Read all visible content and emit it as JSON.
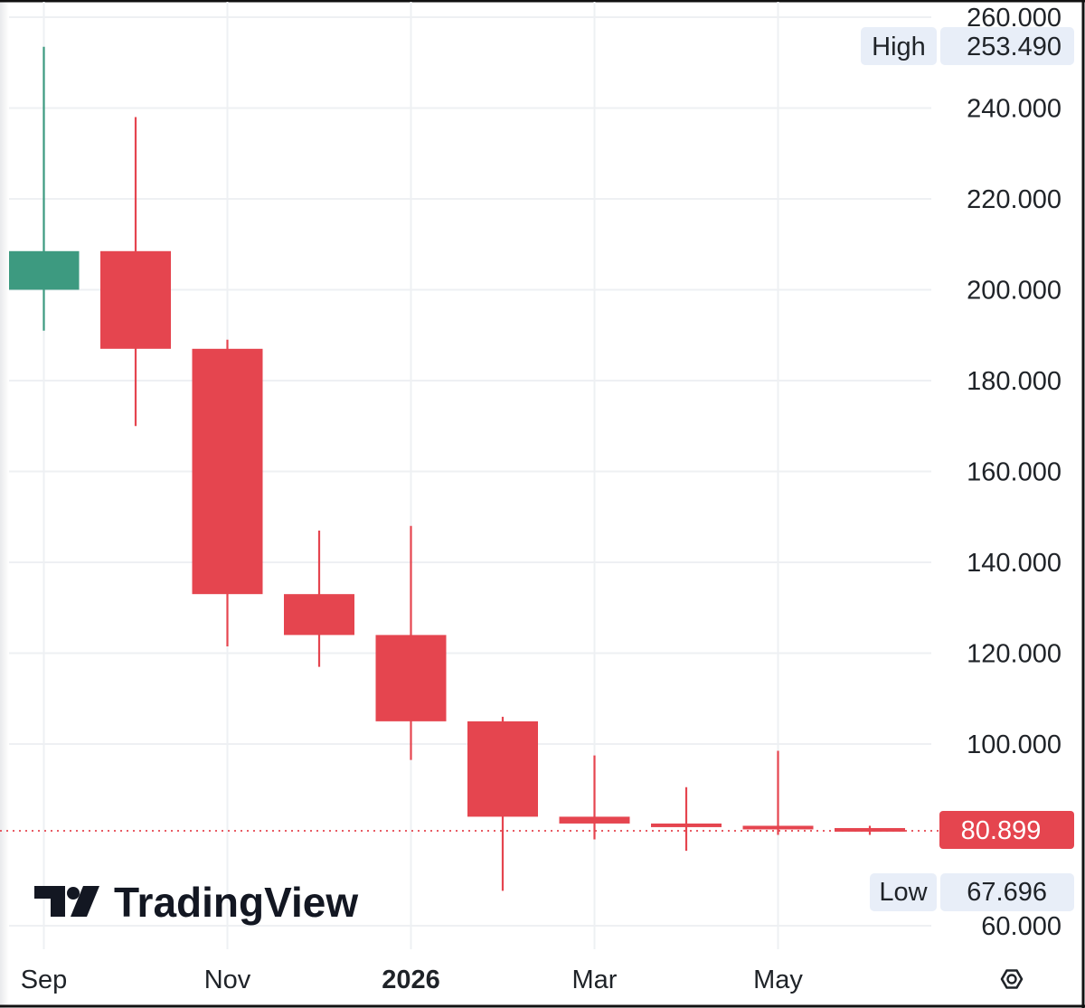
{
  "brand": {
    "logo_text": "TradingView"
  },
  "colors": {
    "up": "#3d9a80",
    "down": "#e5454f",
    "grid": "#eef0f3",
    "badge_bg": "#e8eef8",
    "text": "#1f2328"
  },
  "icons": {
    "settings": "hexagon-settings-icon",
    "logo": "tradingview-tv-logo-icon"
  },
  "chart_data": {
    "type": "candlestick",
    "title": "",
    "xlabel": "",
    "ylabel": "",
    "ylim": [
      55,
      262
    ],
    "y_ticks": [
      "260.000",
      "240.000",
      "220.000",
      "200.000",
      "180.000",
      "160.000",
      "140.000",
      "120.000",
      "100.000",
      "60.000"
    ],
    "x_ticks": [
      "Sep",
      "Nov",
      "2026",
      "Mar",
      "May"
    ],
    "bold_x_tick": "2026",
    "grid": true,
    "candles": [
      {
        "period": "2025-09",
        "open": 200.0,
        "high": 253.49,
        "low": 191.0,
        "close": 208.5
      },
      {
        "period": "2025-10",
        "open": 208.5,
        "high": 238.0,
        "low": 170.0,
        "close": 187.0
      },
      {
        "period": "2025-11",
        "open": 187.0,
        "high": 189.0,
        "low": 121.5,
        "close": 133.0
      },
      {
        "period": "2025-12",
        "open": 133.0,
        "high": 147.0,
        "low": 117.0,
        "close": 124.0
      },
      {
        "period": "2026-01",
        "open": 124.0,
        "high": 148.0,
        "low": 96.5,
        "close": 105.0
      },
      {
        "period": "2026-02",
        "open": 105.0,
        "high": 106.0,
        "low": 67.696,
        "close": 84.0
      },
      {
        "period": "2026-03",
        "open": 84.0,
        "high": 97.5,
        "low": 79.0,
        "close": 82.5
      },
      {
        "period": "2026-04",
        "open": 82.5,
        "high": 90.5,
        "low": 76.5,
        "close": 82.0
      },
      {
        "period": "2026-05",
        "open": 82.0,
        "high": 98.5,
        "low": 80.0,
        "close": 81.5
      },
      {
        "period": "2026-06",
        "open": 81.5,
        "high": 82.0,
        "low": 80.0,
        "close": 80.899
      }
    ],
    "high_label": "High",
    "high_value": "253.490",
    "low_label": "Low",
    "low_value": "67.696",
    "last_price": 80.899,
    "last_price_label": "80.899"
  }
}
